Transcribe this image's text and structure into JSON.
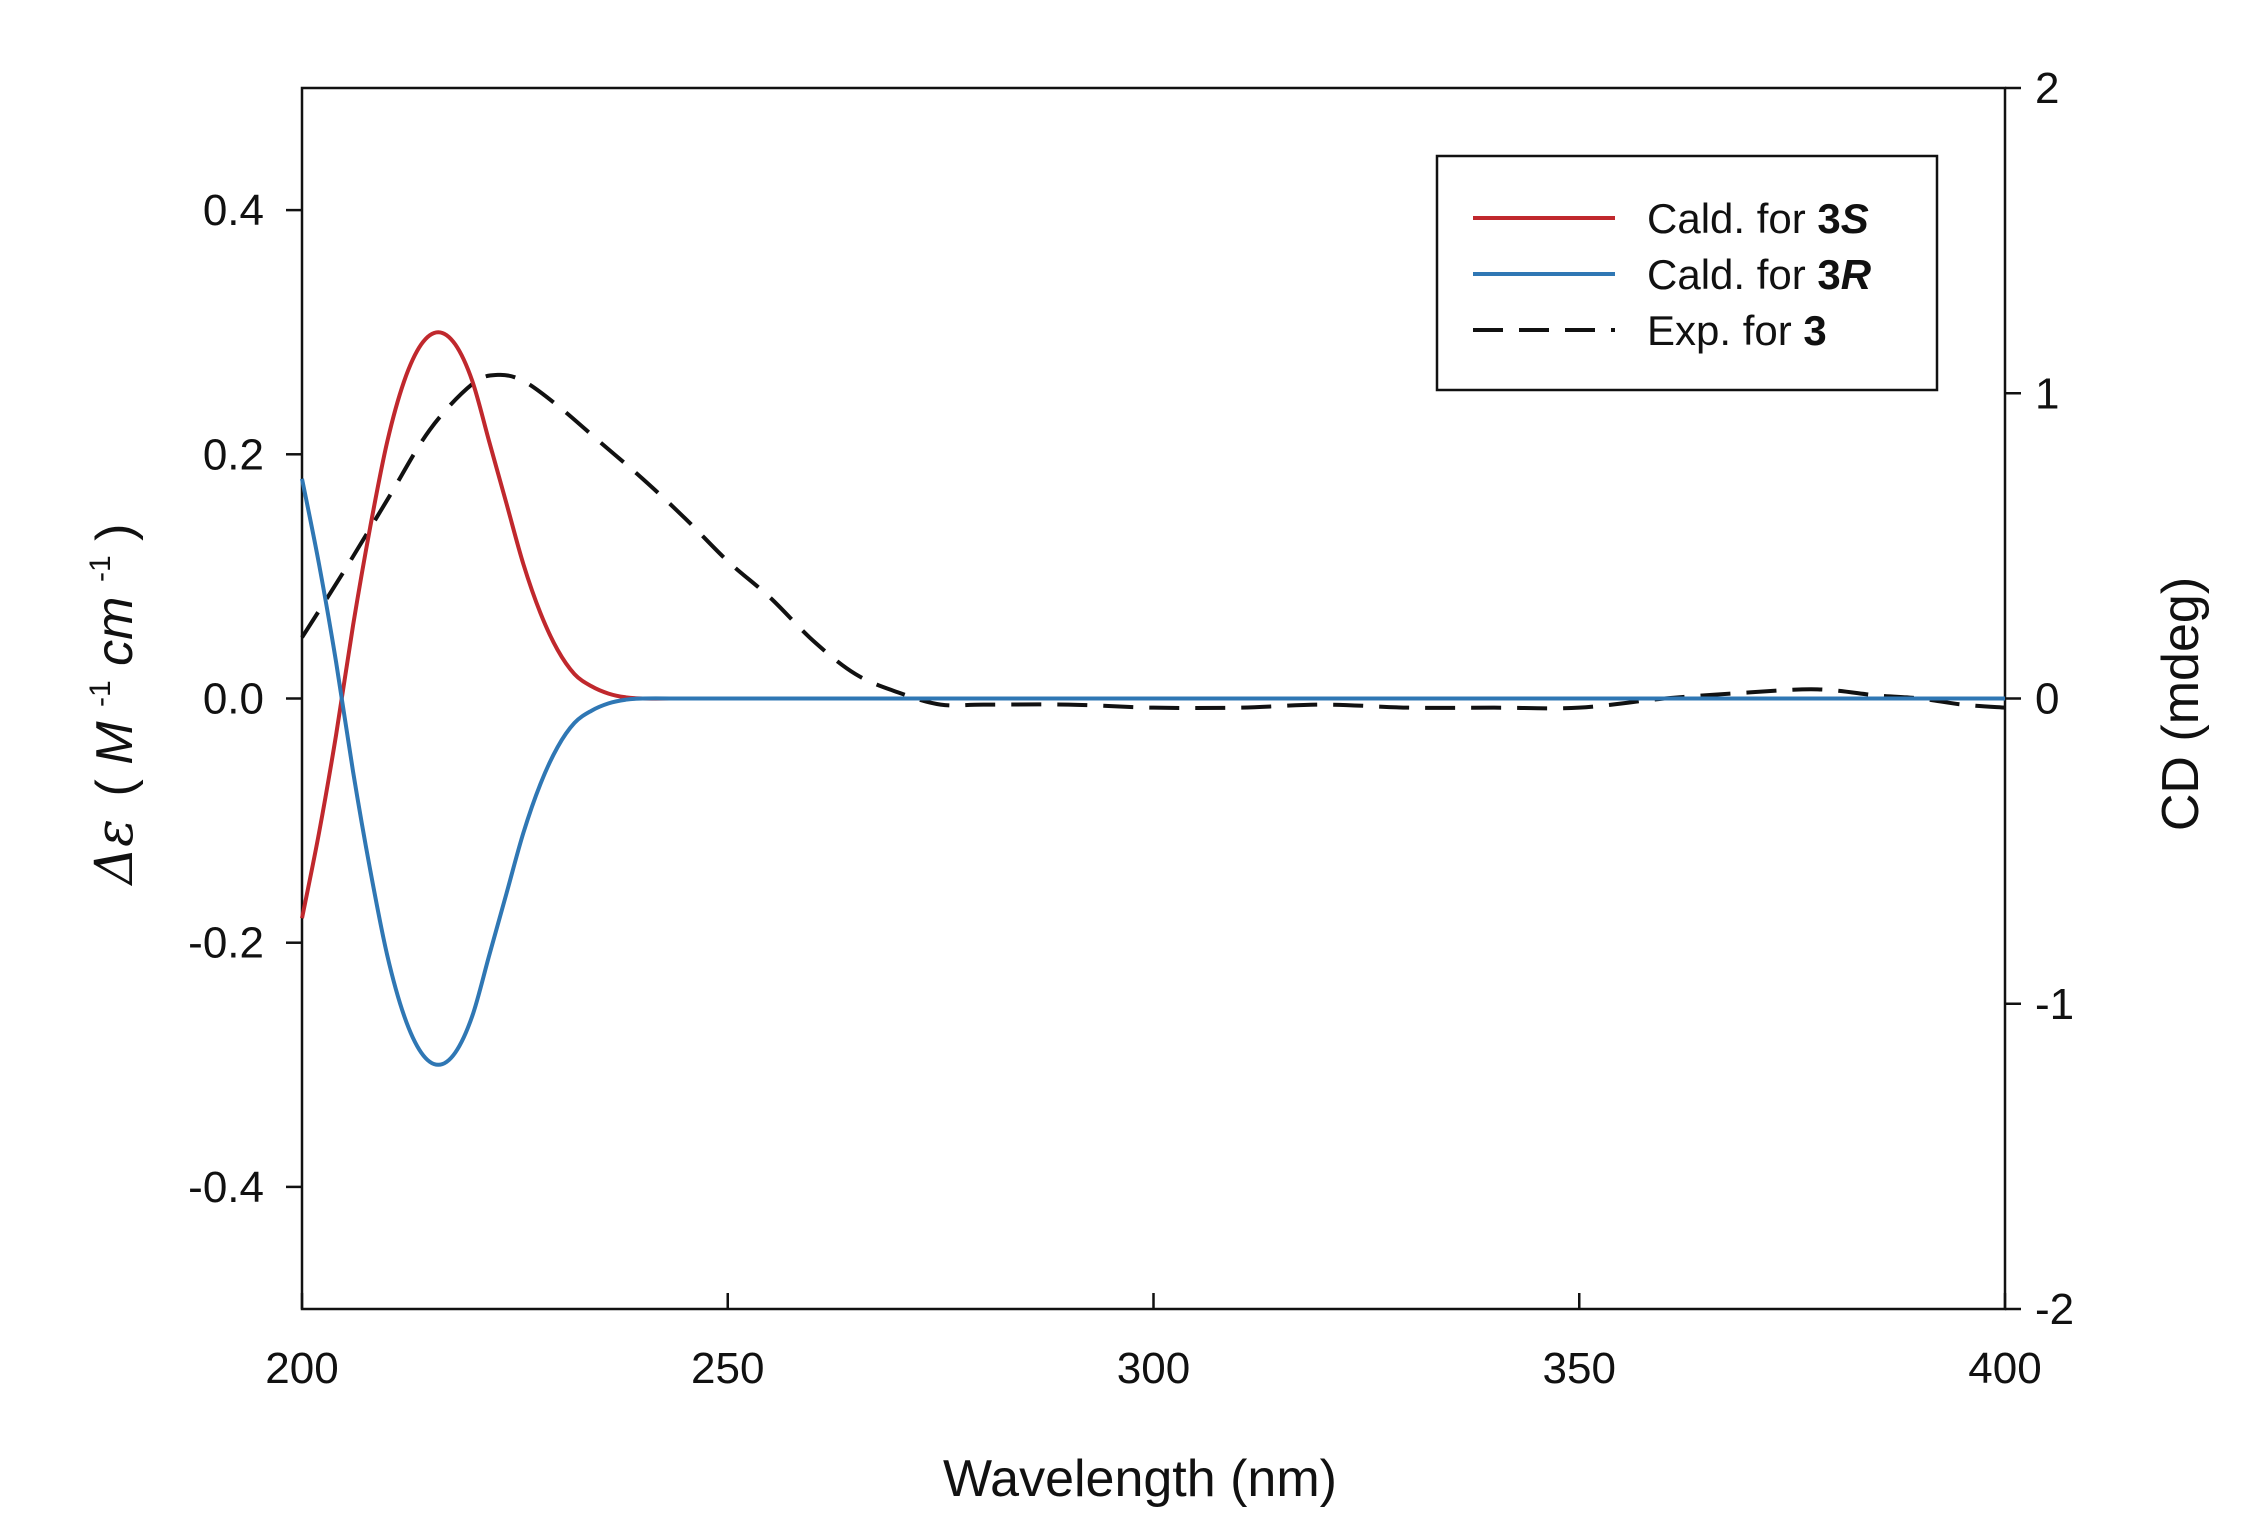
{
  "chart_data": {
    "type": "line",
    "title": "",
    "xlabel": "Wavelength (nm)",
    "ylabel": "Δε (M⁻¹cm⁻¹)",
    "ylabel_parts": {
      "symbol": "Δε",
      "open": "(",
      "M": "M",
      "sup1": "-1",
      "cm": "cm",
      "sup2": "-1",
      "close": ")"
    },
    "y2label": "CD (mdeg)",
    "xlim": [
      200,
      400
    ],
    "ylim": [
      -0.5,
      0.5
    ],
    "y2lim": [
      -2,
      2
    ],
    "xticks": [
      200,
      250,
      300,
      350,
      400
    ],
    "yticks": [
      -0.4,
      -0.2,
      0.0,
      0.2,
      0.4
    ],
    "yticklabels": [
      "-0.4",
      "-0.2",
      "0.0",
      "0.2",
      "0.4"
    ],
    "y2ticks": [
      -2,
      -1,
      0,
      1,
      2
    ],
    "y2ticklabels": [
      "-2",
      "-1",
      "0",
      "1",
      "2"
    ],
    "grid": false,
    "legend_position": "top-right",
    "series": [
      {
        "name": "Cald. for 3S",
        "legend_prefix": "Cald. for ",
        "legend_bold": "3",
        "legend_bold_italic": "S",
        "color": "#c0282d",
        "dash": "solid",
        "axis": "left",
        "x": [
          200,
          202,
          204,
          206,
          208,
          210,
          212,
          214,
          216,
          218,
          220,
          222,
          224,
          226,
          228,
          230,
          232,
          234,
          236,
          238,
          240,
          245,
          250,
          300,
          350,
          400
        ],
        "y": [
          -0.18,
          -0.11,
          -0.03,
          0.06,
          0.14,
          0.21,
          0.26,
          0.29,
          0.3,
          0.29,
          0.26,
          0.21,
          0.16,
          0.11,
          0.07,
          0.04,
          0.02,
          0.01,
          0.004,
          0.001,
          0.0,
          0.0,
          0.0,
          0.0,
          0.0,
          0.0
        ]
      },
      {
        "name": "Cald. for 3R",
        "legend_prefix": "Cald. for ",
        "legend_bold": "3",
        "legend_bold_italic": "R",
        "color": "#2f77b4",
        "dash": "solid",
        "axis": "left",
        "x": [
          200,
          202,
          204,
          206,
          208,
          210,
          212,
          214,
          216,
          218,
          220,
          222,
          224,
          226,
          228,
          230,
          232,
          234,
          236,
          238,
          240,
          245,
          250,
          300,
          350,
          400
        ],
        "y": [
          0.18,
          0.11,
          0.03,
          -0.06,
          -0.14,
          -0.21,
          -0.26,
          -0.29,
          -0.3,
          -0.29,
          -0.26,
          -0.21,
          -0.16,
          -0.11,
          -0.07,
          -0.04,
          -0.02,
          -0.01,
          -0.004,
          -0.001,
          0.0,
          0.0,
          0.0,
          0.0,
          0.0,
          0.0
        ]
      },
      {
        "name": "Exp. for 3",
        "legend_prefix": "Exp. for ",
        "legend_bold": "3",
        "legend_bold_italic": "",
        "color": "#111111",
        "dash": "dashed",
        "axis": "right",
        "x": [
          200,
          205,
          210,
          215,
          220,
          223,
          226,
          230,
          235,
          240,
          245,
          250,
          255,
          260,
          265,
          270,
          275,
          280,
          290,
          300,
          310,
          320,
          330,
          340,
          350,
          360,
          370,
          378,
          385,
          390,
          395,
          400
        ],
        "y": [
          0.2,
          0.42,
          0.65,
          0.88,
          1.03,
          1.06,
          1.04,
          0.96,
          0.84,
          0.72,
          0.59,
          0.45,
          0.33,
          0.19,
          0.08,
          0.02,
          -0.02,
          -0.02,
          -0.02,
          -0.03,
          -0.03,
          -0.02,
          -0.03,
          -0.03,
          -0.03,
          0.0,
          0.02,
          0.03,
          0.01,
          0.0,
          -0.02,
          -0.03
        ]
      }
    ]
  }
}
